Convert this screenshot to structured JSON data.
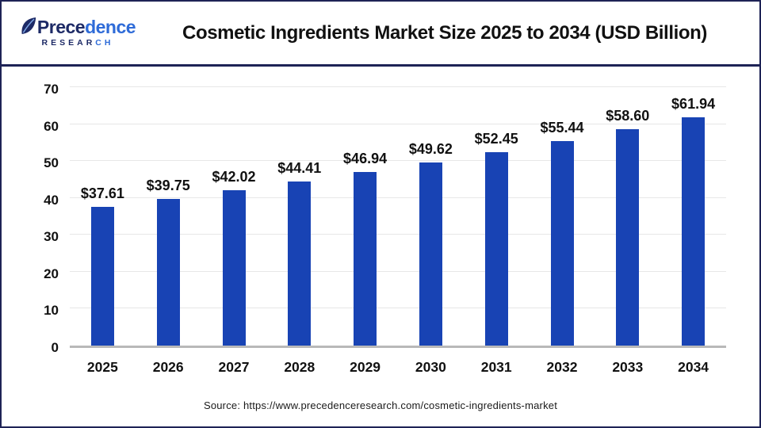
{
  "header": {
    "logo": {
      "name_dark": "Prece",
      "name_light": "dence",
      "sub_dark": "RESEAR",
      "sub_light": "CH"
    }
  },
  "chart_data": {
    "type": "bar",
    "title": "Cosmetic Ingredients Market Size 2025 to 2034 (USD Billion)",
    "categories": [
      "2025",
      "2026",
      "2027",
      "2028",
      "2029",
      "2030",
      "2031",
      "2032",
      "2033",
      "2034"
    ],
    "values": [
      37.61,
      39.75,
      42.02,
      44.41,
      46.94,
      49.62,
      52.45,
      55.44,
      58.6,
      61.94
    ],
    "value_labels": [
      "$37.61",
      "$39.75",
      "$42.02",
      "$44.41",
      "$46.94",
      "$49.62",
      "$52.45",
      "$55.44",
      "$58.60",
      "$61.94"
    ],
    "ylabel": "",
    "xlabel": "",
    "ylim": [
      0,
      70
    ],
    "yticks": [
      0,
      10,
      20,
      30,
      40,
      50,
      60,
      70
    ],
    "grid": true,
    "legend": false,
    "bar_color": "#1843b4"
  },
  "footer": {
    "source": "Source: https://www.precedenceresearch.com/cosmetic-ingredients-market"
  },
  "colors": {
    "bar": "#1843b4",
    "frame_navy": "#1e2356",
    "gridline": "#e7e7e7",
    "axis_line": "#b9b9b9",
    "logo_dark": "#1d2a66",
    "logo_light": "#2e6bd8",
    "title_text": "#111111"
  }
}
